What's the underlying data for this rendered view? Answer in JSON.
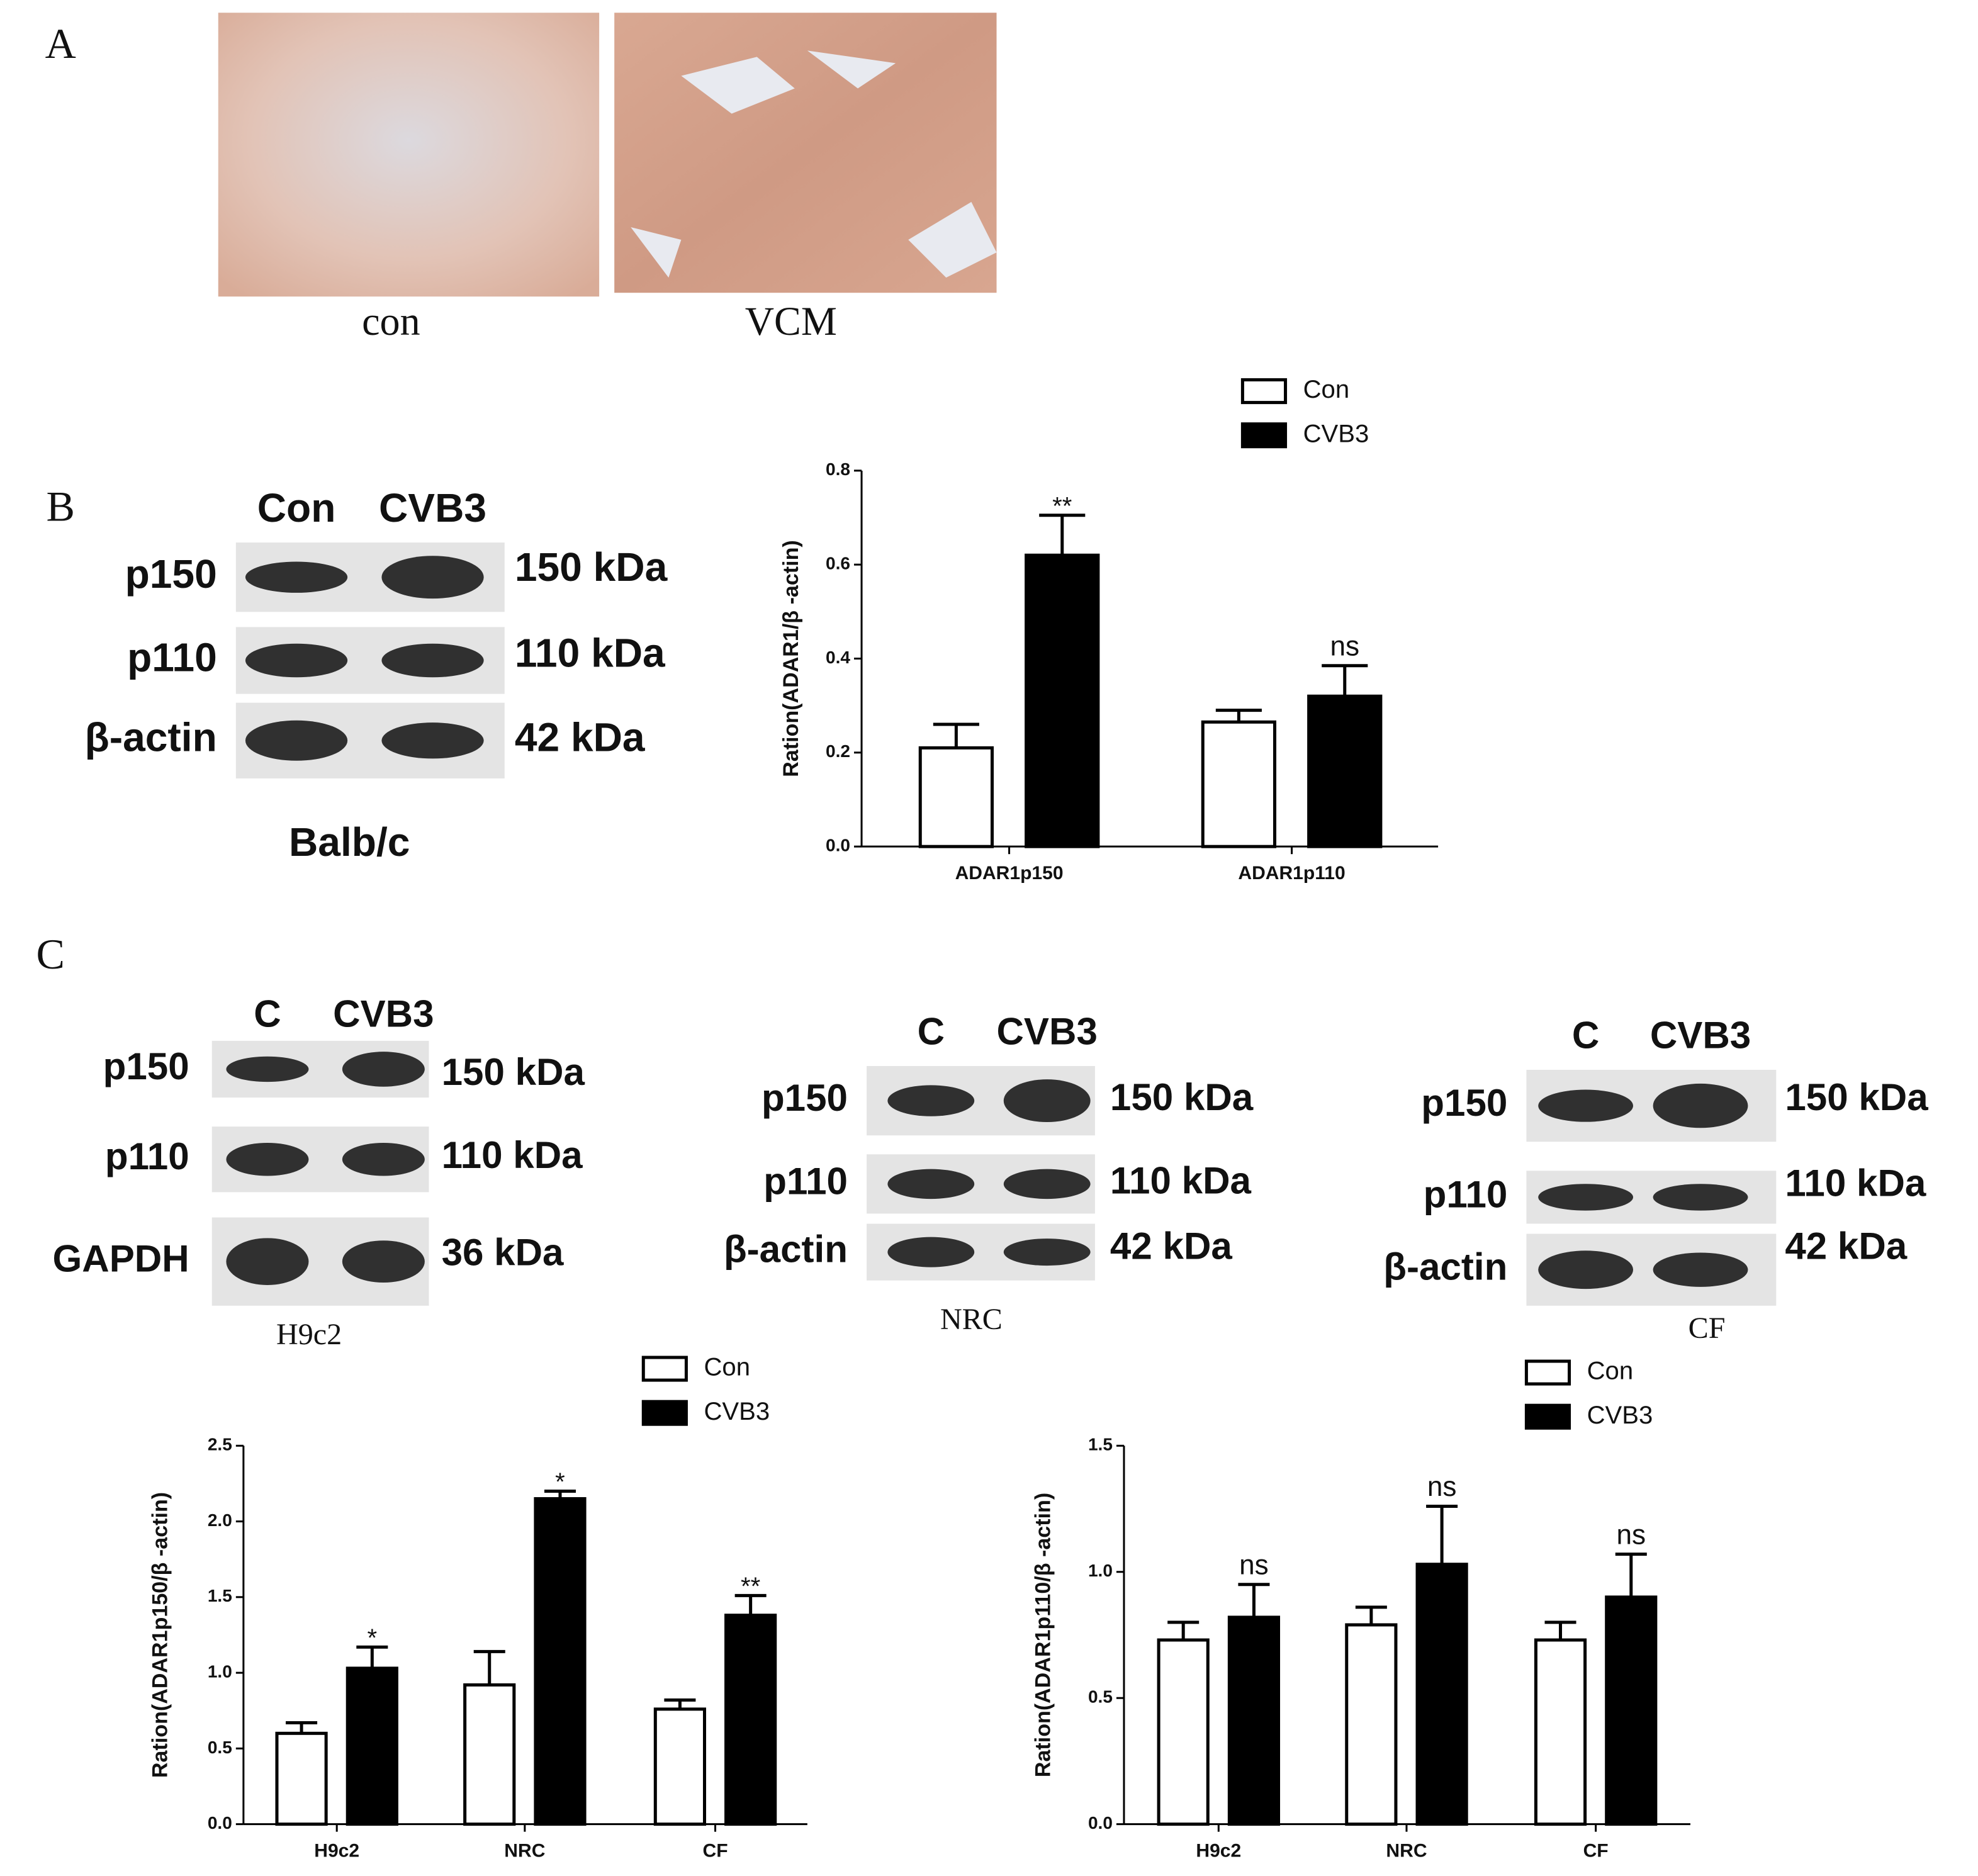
{
  "figure": {
    "panel_labels": [
      "A",
      "B",
      "C"
    ],
    "histology": [
      "con",
      "VCM"
    ],
    "blots": [
      {
        "columns": [
          "Con",
          "CVB3"
        ],
        "rows": [
          {
            "label": "p150",
            "size": "150 kDa"
          },
          {
            "label": "p110",
            "size": "110 kDa"
          },
          {
            "label": "β-actin",
            "size": "42 kDa"
          }
        ],
        "caption": "Balb/c"
      },
      {
        "columns": [
          "C",
          "CVB3"
        ],
        "rows": [
          {
            "label": "p150",
            "size": "150 kDa"
          },
          {
            "label": "p110",
            "size": "110 kDa"
          },
          {
            "label": "GAPDH",
            "size": "36 kDa"
          }
        ],
        "caption": "H9c2"
      },
      {
        "columns": [
          "C",
          "CVB3"
        ],
        "rows": [
          {
            "label": "p150",
            "size": "150 kDa"
          },
          {
            "label": "p110",
            "size": "110 kDa"
          },
          {
            "label": "β-actin",
            "size": "42 kDa"
          }
        ],
        "caption": "NRC"
      },
      {
        "columns": [
          "C",
          "CVB3"
        ],
        "rows": [
          {
            "label": "p150",
            "size": "150 kDa"
          },
          {
            "label": "p110",
            "size": "110 kDa"
          },
          {
            "label": "β-actin",
            "size": "42 kDa"
          }
        ],
        "caption": "CF"
      }
    ]
  },
  "chart_data": [
    {
      "type": "bar",
      "y_label": "Ration(ADAR1/β -actin)",
      "categories": [
        "ADAR1p150",
        "ADAR1p110"
      ],
      "series": [
        {
          "name": "Con",
          "color": "#ffffff",
          "values": [
            0.21,
            0.265
          ],
          "errors": [
            0.05,
            0.025
          ]
        },
        {
          "name": "CVB3",
          "color": "#000000",
          "values": [
            0.62,
            0.32
          ],
          "errors": [
            0.085,
            0.065
          ]
        }
      ],
      "annotations": [
        "**",
        "ns"
      ],
      "ylim": [
        0,
        0.8
      ],
      "yticks": [
        {
          "value": 0,
          "label": "0.0"
        },
        0.2,
        0.4,
        0.6,
        0.8
      ]
    },
    {
      "type": "bar",
      "y_label": "Ration(ADAR1p150/β -actin)",
      "categories": [
        "H9c2",
        "NRC",
        "CF"
      ],
      "series": [
        {
          "name": "Con",
          "color": "#ffffff",
          "values": [
            0.6,
            0.92,
            0.76
          ],
          "errors": [
            0.07,
            0.22,
            0.06
          ]
        },
        {
          "name": "CVB3",
          "color": "#000000",
          "values": [
            1.03,
            2.15,
            1.38
          ],
          "errors": [
            0.14,
            0.05,
            0.13
          ]
        }
      ],
      "annotations": [
        "*",
        "*",
        "**"
      ],
      "ylim": [
        0,
        2.5
      ],
      "yticks": [
        {
          "value": 0,
          "label": "0.0"
        },
        0.5,
        {
          "value": 1,
          "label": "1.0"
        },
        1.5,
        {
          "value": 2,
          "label": "2.0"
        },
        2.5
      ]
    },
    {
      "type": "bar",
      "y_label": "Ration(ADAR1p110/β -actin)",
      "categories": [
        "H9c2",
        "NRC",
        "CF"
      ],
      "series": [
        {
          "name": "Con",
          "color": "#ffffff",
          "values": [
            0.73,
            0.79,
            0.73
          ],
          "errors": [
            0.07,
            0.07,
            0.07
          ]
        },
        {
          "name": "CVB3",
          "color": "#000000",
          "values": [
            0.82,
            1.03,
            0.9
          ],
          "errors": [
            0.13,
            0.23,
            0.17
          ]
        }
      ],
      "annotations": [
        "ns",
        "ns",
        "ns"
      ],
      "ylim": [
        0,
        1.5
      ],
      "yticks": [
        {
          "value": 0,
          "label": "0.0"
        },
        0.5,
        {
          "value": 1,
          "label": "1.0"
        },
        1.5
      ]
    }
  ]
}
